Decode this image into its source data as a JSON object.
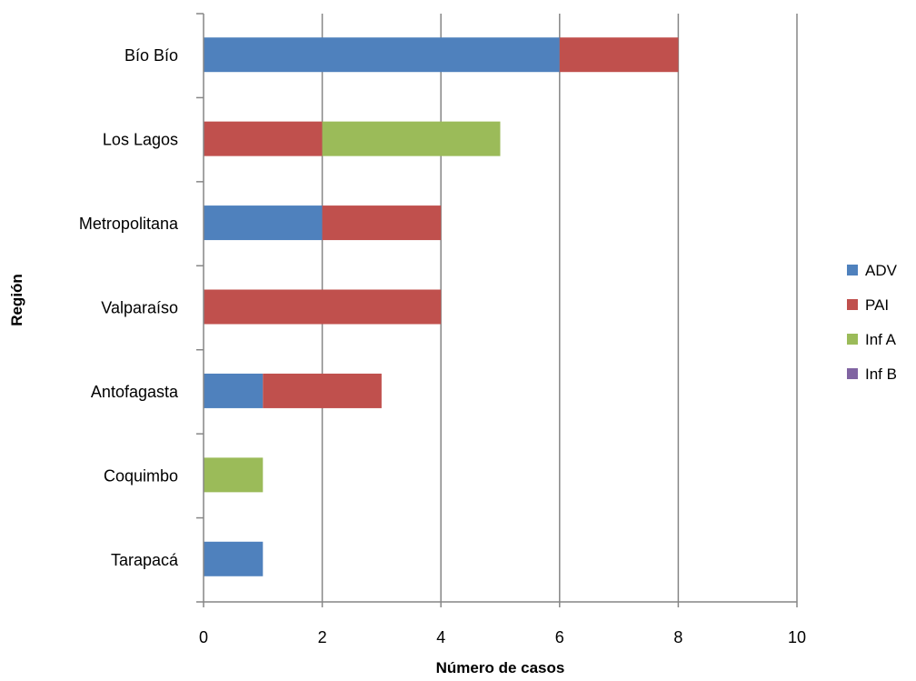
{
  "chart_data": {
    "type": "bar",
    "orientation": "horizontal",
    "stacked": true,
    "title": "",
    "xlabel": "Número de casos",
    "ylabel": "Región",
    "categories": [
      "Bío Bío",
      "Los Lagos",
      "Metropolitana",
      "Valparaíso",
      "Antofagasta",
      "Coquimbo",
      "Tarapacá"
    ],
    "x_ticks": [
      "0",
      "2",
      "4",
      "6",
      "8",
      "10"
    ],
    "xlim": [
      0,
      10
    ],
    "grid": true,
    "legend_position": "right",
    "series": [
      {
        "name": "ADV",
        "color": "#4F81BD",
        "values": [
          6,
          0,
          2,
          0,
          1,
          0,
          1
        ]
      },
      {
        "name": "PAI",
        "color": "#C0504D",
        "values": [
          2,
          2,
          2,
          4,
          2,
          0,
          0
        ]
      },
      {
        "name": "Inf A",
        "color": "#9BBB59",
        "values": [
          0,
          3,
          0,
          0,
          0,
          1,
          0
        ]
      },
      {
        "name": "Inf B",
        "color": "#8064A2",
        "values": [
          0,
          0,
          0,
          0,
          0,
          0,
          0
        ]
      }
    ]
  }
}
